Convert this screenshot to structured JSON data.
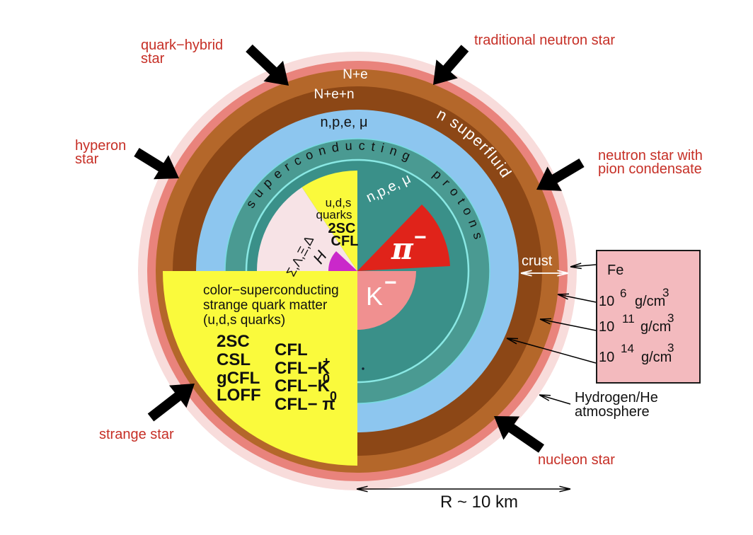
{
  "star_labels": {
    "quark_hybrid_line1": "quark−hybrid",
    "quark_hybrid_line2": "star",
    "traditional": "traditional neutron star",
    "hyperon_line1": "hyperon",
    "hyperon_line2": "star",
    "pion_line1": "neutron star with",
    "pion_line2": "pion condensate",
    "strange": "strange star",
    "nucleon": "nucleon star"
  },
  "rings": {
    "n_e": "N+e",
    "n_e_n": "N+e+n",
    "npe_mu_outer": "n,p,e, μ",
    "n_superfluid": "n superfluid",
    "superconducting_protons": "superconducting protons",
    "npe_mu_inner": "n,p,e, μ",
    "crust": "crust"
  },
  "wedges": {
    "uds_line1": "u,d,s",
    "uds_line2": "quarks",
    "uds_2sc": "2SC",
    "uds_cfl": "CFL",
    "hyperons": "Σ,Λ,Ξ,Δ",
    "h_matter": "H",
    "pi": "π",
    "pi_sign": "−",
    "k": "K",
    "k_sign": "−"
  },
  "quark_sector": {
    "title_line1": "color−superconducting",
    "title_line2": "strange quark matter",
    "title_line3": "(u,d,s quarks)",
    "col1": [
      "2SC",
      "CSL",
      "gCFL",
      "LOFF"
    ],
    "col2_row1": "CFL",
    "col2_row2_base": "CFL−K",
    "col2_row2_sup": "+",
    "col2_row3_base": "CFL−K",
    "col2_row3_sup": "0",
    "col2_row4_base": "CFL− π",
    "col2_row4_sup": "0"
  },
  "density_box": {
    "fe": "Fe",
    "rows": [
      {
        "base": "10",
        "exp": "6",
        "unit": "g/cm",
        "unit_exp": "3"
      },
      {
        "base": "10",
        "exp": "11",
        "unit": "g/cm",
        "unit_exp": "3"
      },
      {
        "base": "10",
        "exp": "14",
        "unit": "g/cm",
        "unit_exp": "3"
      }
    ]
  },
  "annotations": {
    "hydrogen_line1": "Hydrogen/He",
    "hydrogen_line2": "atmosphere",
    "radius": "R ~ 10 km"
  },
  "colors": {
    "pale_pink": "#f8dcdb",
    "salmon": "#e9837c",
    "light_brown": "#b4672a",
    "dark_brown": "#8c4716",
    "light_blue": "#8dc6ef",
    "teal_ring": "#4a9a92",
    "teal_inner": "#3a9089",
    "cyan_rim": "#84e4e2",
    "yellow": "#fafa3c",
    "red_wedge": "#e0231a",
    "light_red_wedge": "#f09090",
    "pale_rose": "#f7e3e6",
    "magenta": "#ca28ca",
    "box_pink": "#f3babe",
    "label_red": "#c62f26"
  }
}
